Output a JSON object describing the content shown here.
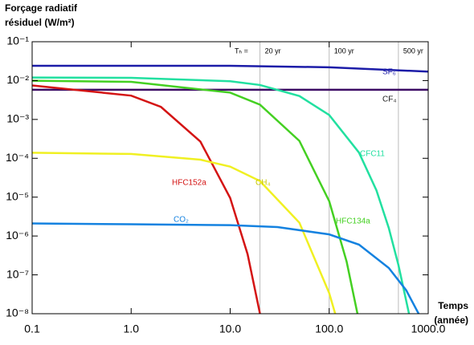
{
  "chart_data": {
    "type": "line",
    "y_title_lines": [
      "Forçage radiatif",
      "résiduel (W/m²)"
    ],
    "x_title_lines": [
      "Temps",
      "(année)"
    ],
    "xscale": "log",
    "yscale": "log",
    "xlim": [
      0.1,
      1000
    ],
    "ylim": [
      1e-08,
      0.1
    ],
    "xticks": [
      0.1,
      {
        "value": 1,
        "label": "1.0"
      },
      {
        "value": 10,
        "label": "10.0"
      },
      {
        "value": 100,
        "label": "100.0"
      },
      {
        "value": 1000,
        "label": "1000.0"
      }
    ],
    "yticks": [
      {
        "value": 0.1,
        "label": "10⁻¹"
      },
      {
        "value": 0.01,
        "label": "10⁻²"
      },
      {
        "value": 0.001,
        "label": "10⁻³"
      },
      {
        "value": 0.0001,
        "label": "10⁻⁴"
      },
      {
        "value": 1e-05,
        "label": "10⁻⁵"
      },
      {
        "value": 1e-06,
        "label": "10⁻⁶"
      },
      {
        "value": 1e-07,
        "label": "10⁻⁷"
      },
      {
        "value": 1e-08,
        "label": "10⁻⁸"
      }
    ],
    "horizon_prefix": "Tₕ =",
    "horizons": [
      {
        "value": 20,
        "label": "20 yr"
      },
      {
        "value": 100,
        "label": "100 yr"
      },
      {
        "value": 500,
        "label": "500 yr"
      }
    ],
    "series": [
      {
        "name": "SF₆",
        "color": "#1c1ca8",
        "x": [
          0.1,
          10,
          100,
          1000
        ],
        "values": [
          0.024,
          0.024,
          0.022,
          0.017
        ]
      },
      {
        "name": "CF₄",
        "color": "#3c0c64",
        "x": [
          0.1,
          1000
        ],
        "values": [
          0.0058,
          0.0058
        ]
      },
      {
        "name": "CFC11",
        "color": "#22e0a0",
        "x": [
          0.1,
          1,
          10,
          20,
          50,
          100,
          200,
          300,
          400,
          500,
          640
        ],
        "values": [
          0.012,
          0.0118,
          0.0096,
          0.0077,
          0.004,
          0.0013,
          0.00014,
          1.5e-05,
          1.6e-06,
          1.8e-07,
          1e-08
        ]
      },
      {
        "name": "HFC134a",
        "color": "#44d022",
        "x": [
          0.1,
          1,
          10,
          20,
          50,
          100,
          150,
          193
        ],
        "values": [
          0.0099,
          0.0093,
          0.0049,
          0.0024,
          0.00028,
          7.9e-06,
          2.2e-07,
          1e-08
        ]
      },
      {
        "name": "HFC152a",
        "color": "#d41414",
        "x": [
          0.1,
          1,
          2,
          5,
          10,
          15,
          20
        ],
        "values": [
          0.0075,
          0.0041,
          0.0021,
          0.00027,
          9.5e-06,
          3.4e-07,
          1e-08
        ]
      },
      {
        "name": "CH₄",
        "color": "#f0f022",
        "x": [
          0.1,
          1,
          5,
          10,
          20,
          50,
          100,
          115
        ],
        "values": [
          0.000139,
          0.000129,
          9.2e-05,
          6.1e-05,
          2.6e-05,
          2.2e-06,
          3.4e-08,
          1e-08
        ]
      },
      {
        "name": "CO₂",
        "color": "#1482e0",
        "x": [
          0.1,
          1,
          10,
          30,
          100,
          200,
          400,
          600,
          800
        ],
        "values": [
          2.1e-06,
          2e-06,
          1.9e-06,
          1.7e-06,
          1.1e-06,
          6e-07,
          1.5e-07,
          4e-08,
          1e-08
        ]
      }
    ]
  }
}
